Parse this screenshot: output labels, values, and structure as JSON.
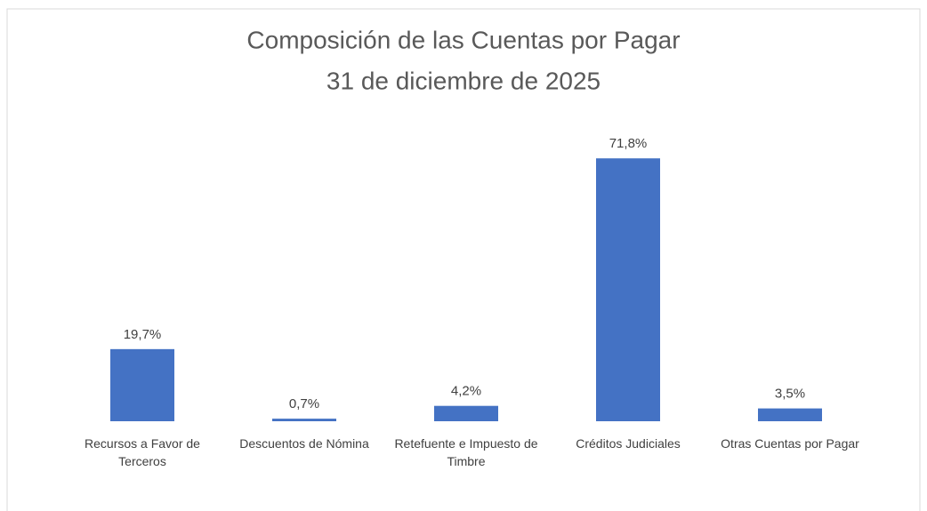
{
  "chart_data": {
    "type": "bar",
    "title": "Composición de las Cuentas por Pagar",
    "subtitle": "31 de diciembre de 2025",
    "categories": [
      "Recursos a Favor de Terceros",
      "Descuentos de Nómina",
      "Retefuente e Impuesto de Timbre",
      "Créditos Judiciales",
      "Otras Cuentas por Pagar"
    ],
    "values": [
      19.7,
      0.7,
      4.2,
      71.8,
      3.5
    ],
    "value_labels": [
      "19,7%",
      "0,7%",
      "4,2%",
      "71,8%",
      "3,5%"
    ],
    "color": "#4472c4"
  }
}
